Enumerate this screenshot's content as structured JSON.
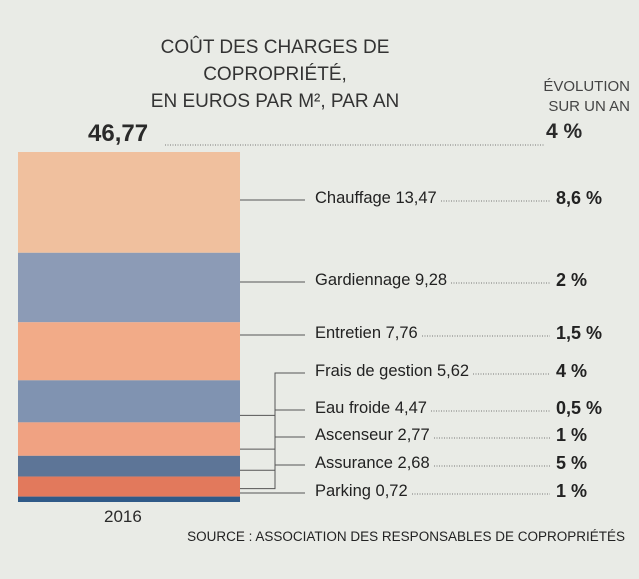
{
  "chart_data": {
    "type": "bar",
    "stacked": true,
    "title": "COÛT DES CHARGES DE COPROPRIÉTÉ,",
    "subtitle": "EN EUROS PAR M², PAR AN",
    "evolution_header": [
      "ÉVOLUTION",
      "SUR UN AN"
    ],
    "categories": [
      "2016"
    ],
    "total": {
      "value": "46,77",
      "evolution": "4 %"
    },
    "series": [
      {
        "name": "Chauffage",
        "value": 13.47,
        "label": "13,47",
        "evolution": "8,6 %",
        "color": "#f0c09e"
      },
      {
        "name": "Gardiennage",
        "value": 9.28,
        "label": "9,28",
        "evolution": "2 %",
        "color": "#8c9bb6"
      },
      {
        "name": "Entretien",
        "value": 7.76,
        "label": "7,76",
        "evolution": "1,5 %",
        "color": "#f2ab88"
      },
      {
        "name": "Frais de gestion",
        "value": 5.62,
        "label": "5,62",
        "evolution": "4 %",
        "color": "#8093b1"
      },
      {
        "name": "Eau froide",
        "value": 4.47,
        "label": "4,47",
        "evolution": "0,5 %",
        "color": "#f0a282"
      },
      {
        "name": "Ascenseur",
        "value": 2.77,
        "label": "2,77",
        "evolution": "1 %",
        "color": "#5d7597"
      },
      {
        "name": "Assurance",
        "value": 2.68,
        "label": "2,68",
        "evolution": "5 %",
        "color": "#e2795c"
      },
      {
        "name": "Parking",
        "value": 0.72,
        "label": "0,72",
        "evolution": "1 %",
        "color": "#2f5a88"
      }
    ],
    "source": "SOURCE : ASSOCIATION DES RESPONSABLES DE COPROPRIÉTÉS"
  }
}
